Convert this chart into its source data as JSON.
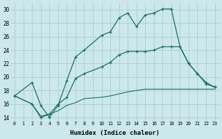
{
  "xlabel": "Humidex (Indice chaleur)",
  "bg_color": "#cce8ea",
  "grid_color": "#aacdd0",
  "line_color": "#1a6e65",
  "x_ticks": [
    0,
    1,
    2,
    3,
    4,
    5,
    6,
    7,
    8,
    9,
    10,
    11,
    12,
    13,
    14,
    15,
    16,
    17,
    18,
    19,
    20,
    21,
    22,
    23
  ],
  "ylim": [
    13.5,
    31.0
  ],
  "xlim": [
    -0.5,
    23.5
  ],
  "yticks": [
    14,
    16,
    18,
    20,
    22,
    24,
    26,
    28,
    30
  ],
  "series1_x": [
    0,
    2,
    3,
    4,
    5,
    6,
    7,
    8,
    10,
    11,
    12,
    13,
    14,
    15,
    16,
    17,
    18,
    19,
    20,
    21,
    22,
    23
  ],
  "series1_y": [
    17.2,
    19.2,
    15.8,
    14.0,
    15.8,
    19.5,
    23.0,
    24.0,
    26.2,
    26.7,
    28.8,
    29.5,
    27.5,
    29.2,
    29.5,
    30.1,
    30.1,
    24.5,
    22.0,
    20.5,
    19.0,
    18.5
  ],
  "series2_x": [
    0,
    2,
    3,
    4,
    5,
    6,
    7,
    8,
    10,
    11,
    12,
    13,
    14,
    15,
    16,
    17,
    18,
    19,
    20,
    21,
    22,
    23
  ],
  "series2_y": [
    17.2,
    16.0,
    14.0,
    14.5,
    16.0,
    17.0,
    19.8,
    20.5,
    21.5,
    22.2,
    23.3,
    23.8,
    23.8,
    23.8,
    24.0,
    24.5,
    24.5,
    24.5,
    22.0,
    20.5,
    19.2,
    18.5
  ],
  "series3_x": [
    0,
    2,
    3,
    4,
    5,
    6,
    7,
    8,
    10,
    11,
    12,
    13,
    14,
    15,
    16,
    17,
    18,
    19,
    20,
    21,
    22,
    23
  ],
  "series3_y": [
    17.2,
    16.0,
    14.2,
    14.5,
    15.0,
    15.8,
    16.2,
    16.8,
    17.0,
    17.2,
    17.5,
    17.8,
    18.0,
    18.2,
    18.2,
    18.2,
    18.2,
    18.2,
    18.2,
    18.2,
    18.2,
    18.2
  ]
}
